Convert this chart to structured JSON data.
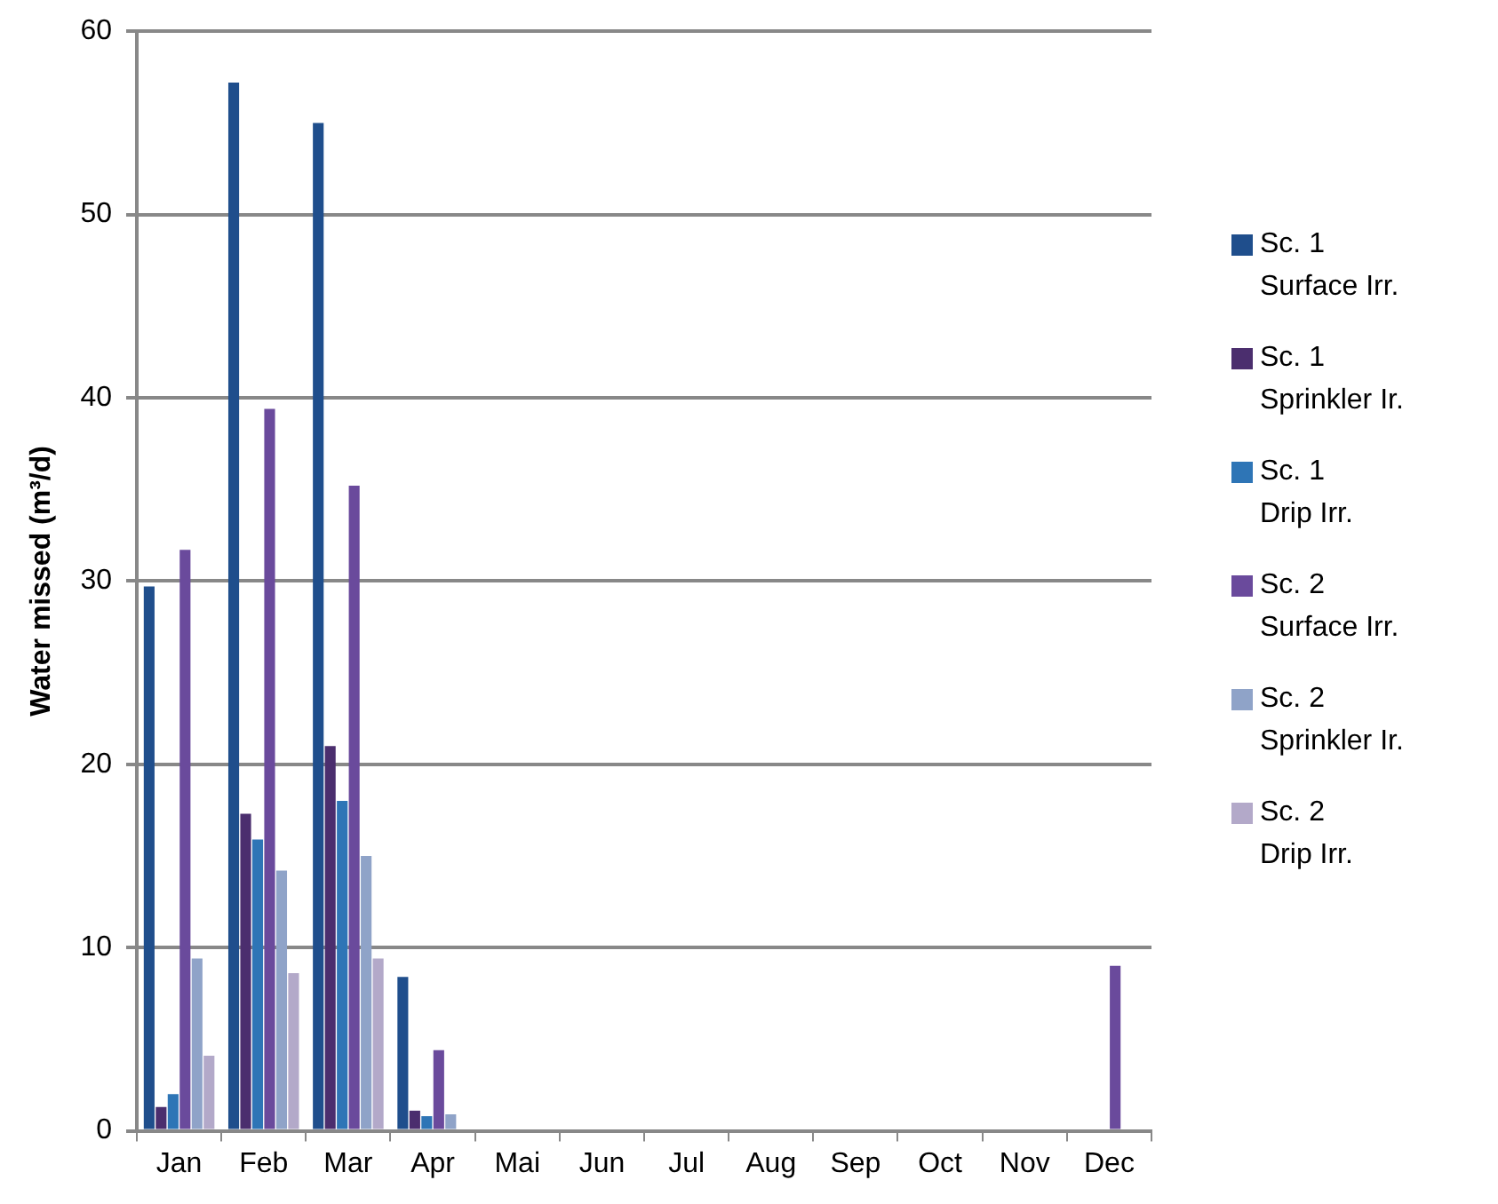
{
  "chart_data": {
    "type": "bar",
    "ylabel": "Water missed (m³/d)",
    "categories": [
      "Jan",
      "Feb",
      "Mar",
      "Apr",
      "Mai",
      "Jun",
      "Jul",
      "Aug",
      "Sep",
      "Oct",
      "Nov",
      "Dec"
    ],
    "series": [
      {
        "name": "Sc. 1\nSurface Irr.",
        "color": "#1f4e8c",
        "values": [
          29.7,
          57.2,
          55.0,
          8.4,
          0,
          0,
          0,
          0,
          0,
          0,
          0,
          0
        ]
      },
      {
        "name": "Sc. 1\nSprinkler Ir.",
        "color": "#4b2e6e",
        "values": [
          1.3,
          17.3,
          21.0,
          1.1,
          0,
          0,
          0,
          0,
          0,
          0,
          0,
          0
        ]
      },
      {
        "name": "Sc. 1\nDrip Irr.",
        "color": "#2e75b6",
        "values": [
          2.0,
          15.9,
          18.0,
          0.8,
          0,
          0,
          0,
          0,
          0,
          0,
          0,
          0
        ]
      },
      {
        "name": "Sc. 2\nSurface Irr.",
        "color": "#6a4a9c",
        "values": [
          31.7,
          39.4,
          35.2,
          4.4,
          0,
          0,
          0,
          0,
          0,
          0,
          0,
          9.0
        ]
      },
      {
        "name": "Sc. 2\nSprinkler Ir.",
        "color": "#8fa3c8",
        "values": [
          9.4,
          14.2,
          15.0,
          0.9,
          0,
          0,
          0,
          0,
          0,
          0,
          0,
          0
        ]
      },
      {
        "name": "Sc. 2\nDrip Irr.",
        "color": "#b3a9c9",
        "values": [
          4.1,
          8.6,
          9.4,
          0,
          0,
          0,
          0,
          0,
          0,
          0,
          0,
          0
        ]
      }
    ],
    "ylim": [
      0,
      60
    ],
    "yticks": [
      0,
      10,
      20,
      30,
      40,
      50,
      60
    ],
    "grid": "y",
    "legend": "right"
  }
}
